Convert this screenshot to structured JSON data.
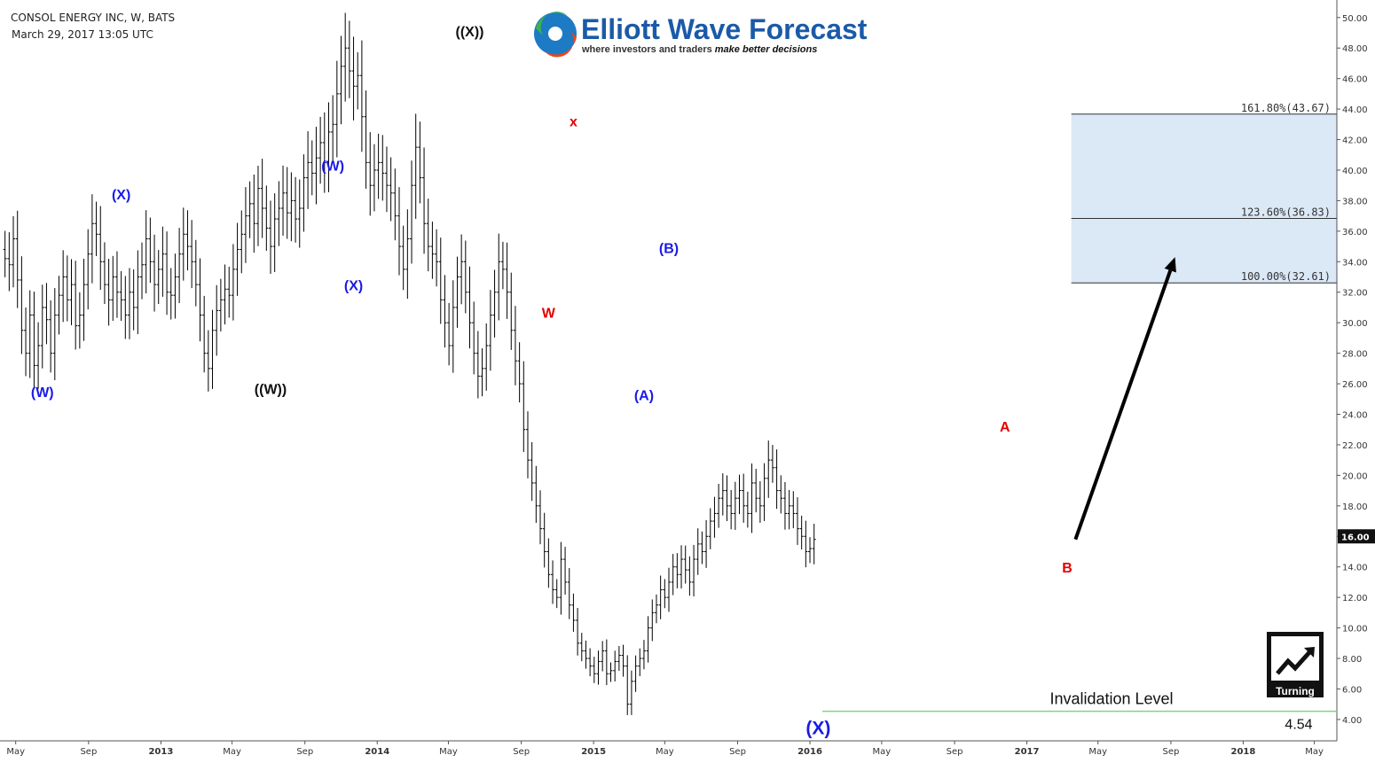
{
  "header": {
    "symbol": "CONSOL ENERGY INC, W, BATS",
    "timestamp": "March 29, 2017 13:05 UTC"
  },
  "logo": {
    "name": "Elliott Wave Forecast",
    "tagline_prefix": "where investors and traders ",
    "tagline_emphasis": "make better decisions"
  },
  "badge": {
    "label": "Turning"
  },
  "colors": {
    "bars": "#000000",
    "wave_blue": "#1a1ae6",
    "wave_black": "#111111",
    "wave_red": "#e60000",
    "target_zone": "#dbe8f6",
    "invalidation_line": "#7cd67c",
    "arrow": "#000000"
  },
  "chart_data": {
    "type": "ohlc",
    "timeframe": "weekly",
    "ylim": [
      2.6,
      50.8
    ],
    "y_ticks": [
      4,
      6,
      8,
      10,
      12,
      14,
      16,
      18,
      20,
      22,
      24,
      26,
      28,
      30,
      32,
      34,
      36,
      38,
      40,
      42,
      44,
      46,
      48,
      50
    ],
    "y_tick_labels": [
      "4.00",
      "6.00",
      "8.00",
      "10.00",
      "12.00",
      "14.00",
      "16.00",
      "18.00",
      "20.00",
      "22.00",
      "24.00",
      "26.00",
      "28.00",
      "30.00",
      "32.00",
      "34.00",
      "36.00",
      "38.00",
      "40.00",
      "42.00",
      "44.00",
      "46.00",
      "48.00",
      "50.00"
    ],
    "current_price_label": "16.00",
    "current_price": 16.0,
    "xlim": [
      "2012-04-09",
      "2018-06-08"
    ],
    "x_ticks": [
      {
        "date": "2012-05-01",
        "label": "May"
      },
      {
        "date": "2012-09-01",
        "label": "Sep"
      },
      {
        "date": "2013-01-01",
        "label": "2013"
      },
      {
        "date": "2013-05-01",
        "label": "May"
      },
      {
        "date": "2013-09-01",
        "label": "Sep"
      },
      {
        "date": "2014-01-01",
        "label": "2014"
      },
      {
        "date": "2014-05-01",
        "label": "May"
      },
      {
        "date": "2014-09-01",
        "label": "Sep"
      },
      {
        "date": "2015-01-01",
        "label": "2015"
      },
      {
        "date": "2015-05-01",
        "label": "May"
      },
      {
        "date": "2015-09-01",
        "label": "Sep"
      },
      {
        "date": "2016-01-01",
        "label": "2016"
      },
      {
        "date": "2016-05-01",
        "label": "May"
      },
      {
        "date": "2016-09-01",
        "label": "Sep"
      },
      {
        "date": "2017-01-01",
        "label": "2017"
      },
      {
        "date": "2017-05-01",
        "label": "May"
      },
      {
        "date": "2017-09-01",
        "label": "Sep"
      },
      {
        "date": "2018-01-01",
        "label": "2018"
      },
      {
        "date": "2018-05-01",
        "label": "May"
      }
    ],
    "series_start": "2012-04-13",
    "closes": [
      34.2,
      33.8,
      35.5,
      32.8,
      29.5,
      28.0,
      30.5,
      27.2,
      28.5,
      31.0,
      30.2,
      28.0,
      30.5,
      31.8,
      33.0,
      31.5,
      32.5,
      29.8,
      30.5,
      32.5,
      34.5,
      36.5,
      35.8,
      34.0,
      32.5,
      31.5,
      33.0,
      32.0,
      31.5,
      30.5,
      32.0,
      31.0,
      33.0,
      33.8,
      35.5,
      34.0,
      32.5,
      33.5,
      34.5,
      32.0,
      31.8,
      33.0,
      34.5,
      35.8,
      35.0,
      34.0,
      32.5,
      30.5,
      28.0,
      27.0,
      29.5,
      30.8,
      31.5,
      32.2,
      31.8,
      33.5,
      34.8,
      35.8,
      37.0,
      37.8,
      36.5,
      38.8,
      37.5,
      36.2,
      35.0,
      36.8,
      37.5,
      38.5,
      37.2,
      38.0,
      36.8,
      37.5,
      39.5,
      40.5,
      39.8,
      40.8,
      41.8,
      40.5,
      42.5,
      43.0,
      45.0,
      46.8,
      48.0,
      46.5,
      45.5,
      46.2,
      43.5,
      40.5,
      39.0,
      40.0,
      40.5,
      39.8,
      39.0,
      38.5,
      37.0,
      35.0,
      33.5,
      35.5,
      39.0,
      41.5,
      39.5,
      36.5,
      35.0,
      34.5,
      34.0,
      31.5,
      30.0,
      28.5,
      31.0,
      33.0,
      34.0,
      32.0,
      30.0,
      28.0,
      26.5,
      27.0,
      28.5,
      30.5,
      32.0,
      34.0,
      33.5,
      32.0,
      29.5,
      27.5,
      26.0,
      23.0,
      21.0,
      19.5,
      18.0,
      16.5,
      15.0,
      13.5,
      12.5,
      12.0,
      14.5,
      13.0,
      11.5,
      10.5,
      9.0,
      8.5,
      8.0,
      7.5,
      7.0,
      7.8,
      8.5,
      7.0,
      7.2,
      7.8,
      8.2,
      7.5,
      5.0,
      6.5,
      7.5,
      8.0,
      8.5,
      10.0,
      11.0,
      11.5,
      12.5,
      12.0,
      13.0,
      14.0,
      13.5,
      14.5,
      13.8,
      13.0,
      14.5,
      15.5,
      15.0,
      16.0,
      17.0,
      17.5,
      18.5,
      19.0,
      18.0,
      17.5,
      18.5,
      19.0,
      18.0,
      17.5,
      19.5,
      18.5,
      18.0,
      19.8,
      21.0,
      20.5,
      19.0,
      18.5,
      17.5,
      18.0,
      17.5,
      16.5,
      16.0,
      15.0,
      15.2,
      15.8
    ],
    "annotations": [
      {
        "label": "(W)",
        "date": "2012-06-15",
        "price": 26.4,
        "color": "wave_blue",
        "size": 16,
        "pos": "below"
      },
      {
        "label": "(X)",
        "date": "2012-10-26",
        "price": 37.5,
        "color": "wave_blue",
        "size": 16,
        "pos": "above"
      },
      {
        "label": "((W))",
        "date": "2013-07-05",
        "price": 26.6,
        "color": "wave_black",
        "size": 16,
        "pos": "below"
      },
      {
        "label": "(W)",
        "date": "2013-10-18",
        "price": 39.4,
        "color": "wave_blue",
        "size": 16,
        "pos": "above"
      },
      {
        "label": "(X)",
        "date": "2013-11-22",
        "price": 33.4,
        "color": "wave_blue",
        "size": 16,
        "pos": "below"
      },
      {
        "label": "((X))",
        "date": "2014-06-06",
        "price": 48.2,
        "color": "wave_black",
        "size": 16,
        "pos": "above"
      },
      {
        "label": "W",
        "date": "2014-10-17",
        "price": 31.6,
        "color": "wave_red",
        "size": 16,
        "pos": "below"
      },
      {
        "label": "x",
        "date": "2014-11-28",
        "price": 42.3,
        "color": "wave_red",
        "size": 16,
        "pos": "above"
      },
      {
        "label": "(A)",
        "date": "2015-03-27",
        "price": 26.2,
        "color": "wave_blue",
        "size": 16,
        "pos": "below"
      },
      {
        "label": "(B)",
        "date": "2015-05-08",
        "price": 34.0,
        "color": "wave_blue",
        "size": 16,
        "pos": "above"
      },
      {
        "label": "(X)",
        "date": "2016-01-15",
        "price": 4.6,
        "color": "wave_blue",
        "size": 21,
        "pos": "below"
      },
      {
        "label": "A",
        "date": "2016-11-25",
        "price": 22.3,
        "color": "wave_red",
        "size": 16,
        "pos": "above"
      },
      {
        "label": "B",
        "date": "2017-03-10",
        "price": 14.9,
        "color": "wave_red",
        "size": 16,
        "pos": "below"
      }
    ],
    "fib_levels": [
      {
        "label": "161.80%(43.67)",
        "price": 43.67
      },
      {
        "label": "123.60%(36.83)",
        "price": 36.83
      },
      {
        "label": "100.00%(32.61)",
        "price": 32.61
      }
    ],
    "target_zone": {
      "from_date": "2017-03-17",
      "to_date": "2018-06-08",
      "low": 32.61,
      "high": 43.67
    },
    "projection_arrow": {
      "from_date": "2017-03-24",
      "from_price": 15.8,
      "to_date": "2017-09-08",
      "to_price": 34.3
    },
    "invalidation": {
      "label": "Invalidation Level",
      "value_label": "4.54",
      "price": 4.54,
      "from_date": "2016-01-22",
      "to_date": "2018-06-08"
    }
  }
}
